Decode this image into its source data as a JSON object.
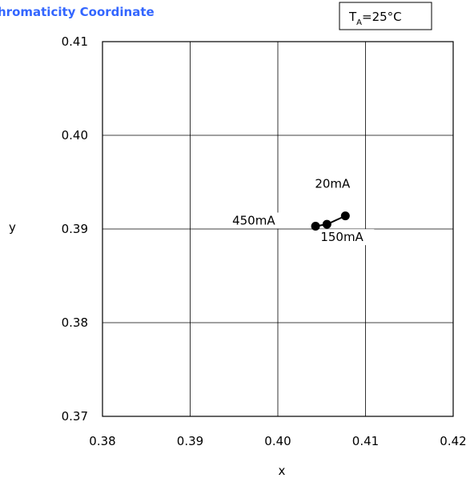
{
  "chart_data": {
    "type": "line",
    "title": "Chromaticity Coordinate",
    "condition": {
      "base": "T",
      "subscript": "A",
      "rest": "=25°C"
    },
    "xlabel": "x",
    "ylabel": "y",
    "xlim": [
      0.38,
      0.42
    ],
    "ylim": [
      0.37,
      0.41
    ],
    "x_ticks": [
      "0.38",
      "0.39",
      "0.40",
      "0.41",
      "0.42"
    ],
    "y_ticks": [
      "0.37",
      "0.38",
      "0.39",
      "0.40",
      "0.41"
    ],
    "grid": true,
    "colors": {
      "title": "#3366ff",
      "series": "#000000",
      "grid": "#000000"
    },
    "series": [
      {
        "points": [
          {
            "x": 0.4077,
            "y": 0.3914
          },
          {
            "x": 0.4056,
            "y": 0.3905
          },
          {
            "x": 0.4043,
            "y": 0.3903
          }
        ]
      }
    ],
    "annotations": [
      {
        "text": "20mA",
        "x": 0.4077,
        "y": 0.3914
      },
      {
        "text": "150mA",
        "x": 0.4056,
        "y": 0.3905
      },
      {
        "text": "450mA",
        "x": 0.4043,
        "y": 0.3903
      }
    ]
  }
}
